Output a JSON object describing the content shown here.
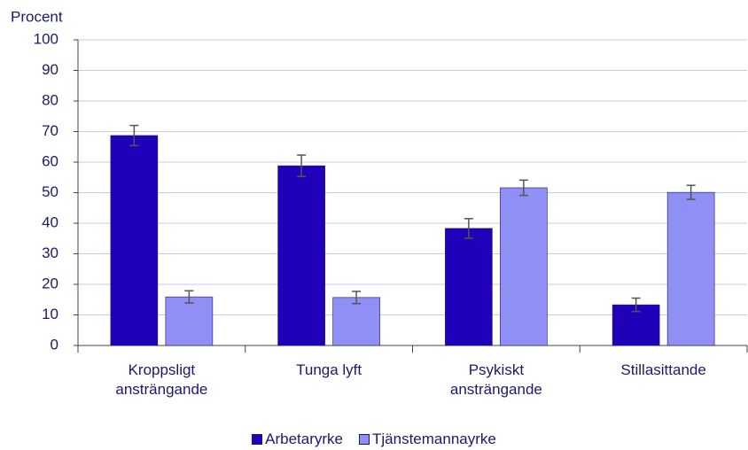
{
  "chart_data": {
    "type": "bar",
    "y_label": "Procent",
    "categories": [
      "Kroppsligt\nansträngande",
      "Tunga lyft",
      "Psykiskt\nansträngande",
      "Stillasittande"
    ],
    "series": [
      {
        "name": "Arbetaryrke",
        "color": "#2000b8",
        "values": [
          68.7,
          58.8,
          38.3,
          13.3
        ],
        "errors": [
          3.3,
          3.5,
          3.2,
          2.2
        ]
      },
      {
        "name": "Tjänstemannayrke",
        "color": "#8f8ff5",
        "values": [
          15.9,
          15.7,
          51.6,
          50.1
        ],
        "errors": [
          2.0,
          2.0,
          2.5,
          2.3
        ]
      }
    ],
    "ylim": [
      0,
      100
    ],
    "yticks": [
      0,
      10,
      20,
      30,
      40,
      50,
      60,
      70,
      80,
      90,
      100
    ],
    "grid": true,
    "legend": "bottom"
  }
}
